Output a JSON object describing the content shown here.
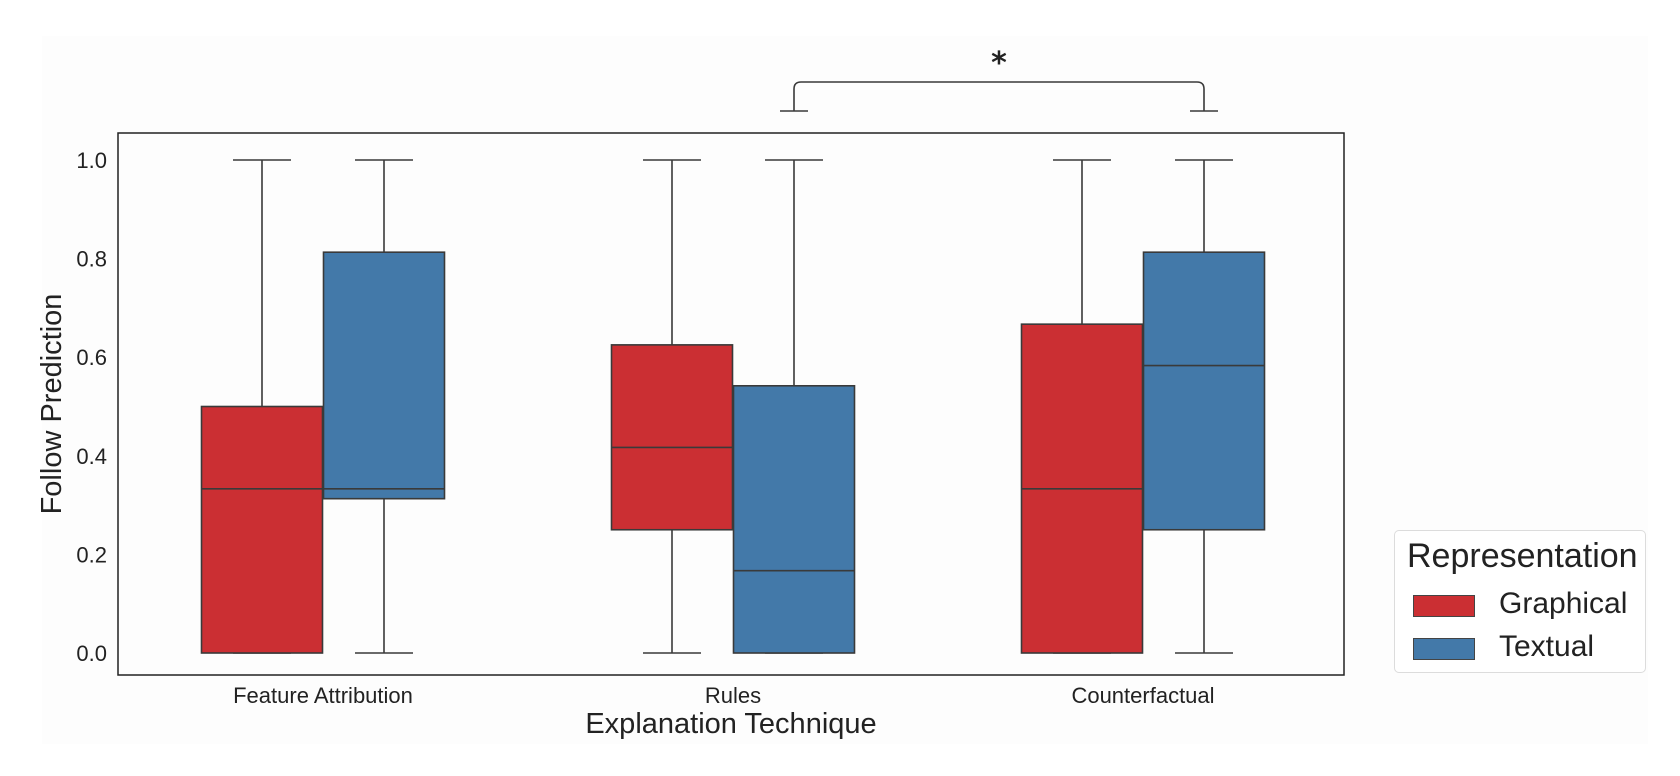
{
  "chart_data": {
    "type": "box",
    "xlabel": "Explanation Technique",
    "ylabel": "Follow Prediction",
    "ylim": [
      0.0,
      1.0
    ],
    "yticks": [
      "0.0",
      "0.2",
      "0.4",
      "0.6",
      "0.8",
      "1.0"
    ],
    "categories": [
      "Feature Attribution",
      "Rules",
      "Counterfactual"
    ],
    "grid": false,
    "legend": {
      "title": "Representation",
      "placement": "right"
    },
    "series": [
      {
        "name": "Graphical",
        "color": "#cb2f33",
        "boxes": [
          {
            "whisker_low": 0.0,
            "q1": 0.0,
            "median": 0.333,
            "q3": 0.5,
            "whisker_high": 1.0
          },
          {
            "whisker_low": 0.0,
            "q1": 0.25,
            "median": 0.417,
            "q3": 0.625,
            "whisker_high": 1.0
          },
          {
            "whisker_low": 0.0,
            "q1": 0.0,
            "median": 0.333,
            "q3": 0.667,
            "whisker_high": 1.0
          }
        ]
      },
      {
        "name": "Textual",
        "color": "#4379a9",
        "boxes": [
          {
            "whisker_low": 0.0,
            "q1": 0.313,
            "median": 0.333,
            "q3": 0.813,
            "whisker_high": 1.0
          },
          {
            "whisker_low": 0.0,
            "q1": 0.0,
            "median": 0.167,
            "q3": 0.542,
            "whisker_high": 1.0
          },
          {
            "whisker_low": 0.0,
            "q1": 0.25,
            "median": 0.583,
            "q3": 0.813,
            "whisker_high": 1.0
          }
        ]
      }
    ],
    "annotations": [
      {
        "text": "*",
        "from": {
          "category": "Rules",
          "series": "Textual"
        },
        "to": {
          "category": "Counterfactual",
          "series": "Textual"
        }
      }
    ]
  }
}
